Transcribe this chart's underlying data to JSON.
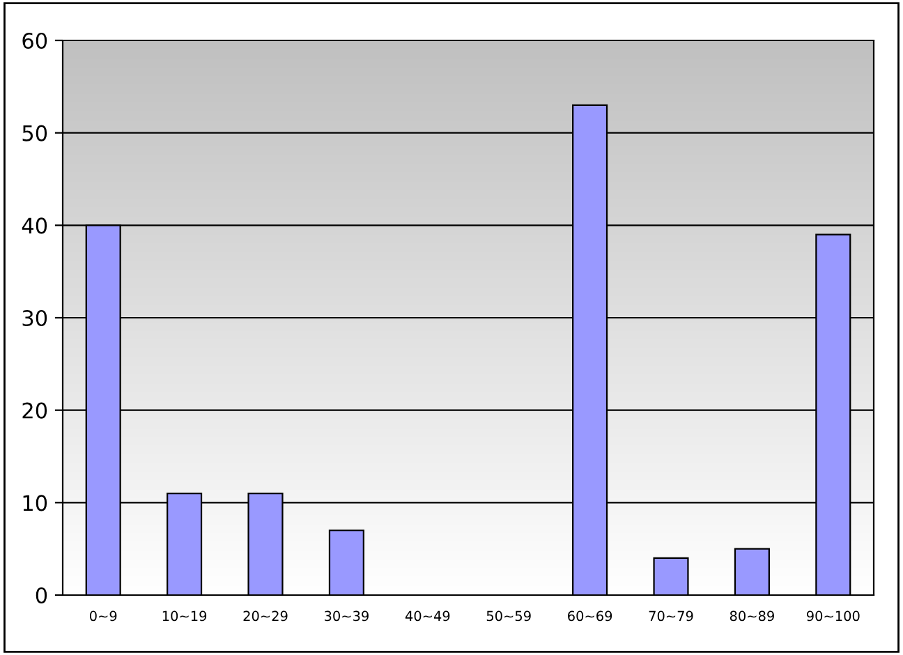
{
  "chart_data": {
    "type": "bar",
    "categories": [
      "0~9",
      "10~19",
      "20~29",
      "30~39",
      "40~49",
      "50~59",
      "60~69",
      "70~79",
      "80~89",
      "90~100"
    ],
    "values": [
      40,
      11,
      11,
      7,
      0,
      0,
      53,
      4,
      5,
      39
    ],
    "color": "#9999ff",
    "ylim": [
      0,
      60
    ],
    "yticks": [
      0,
      10,
      20,
      30,
      40,
      50,
      60
    ],
    "grid": "y",
    "legend": false
  }
}
